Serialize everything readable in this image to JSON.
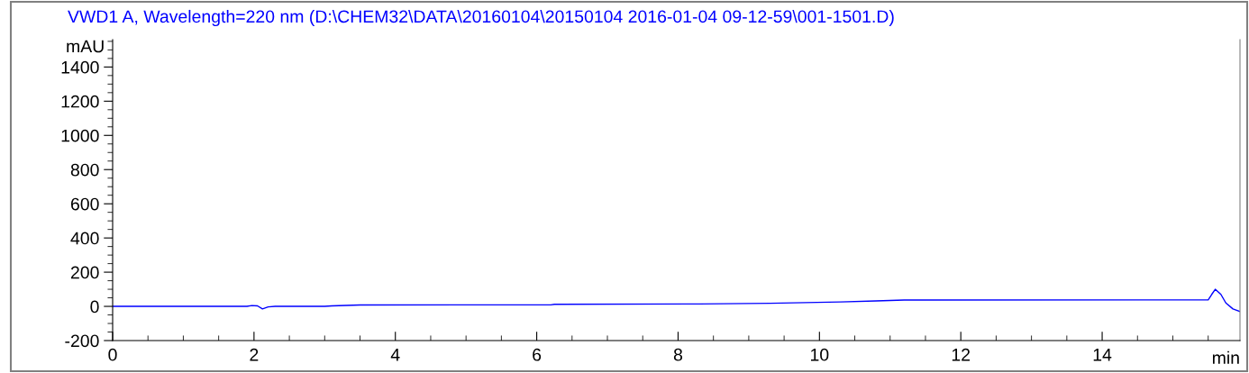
{
  "chart_data": {
    "type": "line",
    "title": "VWD1 A, Wavelength=220 nm (D:\\CHEM32\\DATA\\20160104\\20150104 2016-01-04 09-12-59\\001-1501.D)",
    "xlabel": "min",
    "ylabel": "mAU",
    "x": [
      0,
      1.9,
      1.97,
      2.05,
      2.12,
      2.2,
      2.3,
      3.0,
      3.1,
      3.5,
      6.2,
      6.25,
      8.3,
      9.3,
      9.8,
      10.3,
      10.8,
      11.2,
      15.5,
      15.55,
      15.6,
      15.68,
      15.75,
      15.85,
      15.95
    ],
    "series": [
      {
        "color": "#0000ff",
        "values": [
          0,
          0,
          5,
          3,
          -15,
          -3,
          0,
          0,
          3,
          8,
          9,
          12,
          14,
          18,
          22,
          26,
          32,
          37,
          38,
          70,
          100,
          70,
          20,
          -15,
          -30
        ]
      }
    ],
    "xlim": [
      0,
      15.95
    ],
    "ylim": [
      -200,
      1560
    ],
    "xticks": [
      0,
      {
        "value": 0.5,
        "label": null
      },
      {
        "value": 1,
        "label": null
      },
      {
        "value": 1.5,
        "label": null
      },
      2,
      {
        "value": 2.5,
        "label": null
      },
      {
        "value": 3,
        "label": null
      },
      {
        "value": 3.5,
        "label": null
      },
      4,
      {
        "value": 4.5,
        "label": null
      },
      {
        "value": 5,
        "label": null
      },
      {
        "value": 5.5,
        "label": null
      },
      6,
      {
        "value": 6.5,
        "label": null
      },
      {
        "value": 7,
        "label": null
      },
      {
        "value": 7.5,
        "label": null
      },
      8,
      {
        "value": 8.5,
        "label": null
      },
      {
        "value": 9,
        "label": null
      },
      {
        "value": 9.5,
        "label": null
      },
      10,
      {
        "value": 10.5,
        "label": null
      },
      {
        "value": 11,
        "label": null
      },
      {
        "value": 11.5,
        "label": null
      },
      12,
      {
        "value": 12.5,
        "label": null
      },
      {
        "value": 13,
        "label": null
      },
      {
        "value": 13.5,
        "label": null
      },
      14,
      {
        "value": 14.5,
        "label": null
      },
      {
        "value": 15,
        "label": null
      },
      {
        "value": 15.5,
        "label": null
      }
    ],
    "yticks": [
      -200,
      {
        "value": -150,
        "label": null
      },
      {
        "value": -100,
        "label": null
      },
      {
        "value": -50,
        "label": null
      },
      0,
      {
        "value": 50,
        "label": null
      },
      {
        "value": 100,
        "label": null
      },
      {
        "value": 150,
        "label": null
      },
      200,
      {
        "value": 250,
        "label": null
      },
      {
        "value": 300,
        "label": null
      },
      {
        "value": 350,
        "label": null
      },
      400,
      {
        "value": 450,
        "label": null
      },
      {
        "value": 500,
        "label": null
      },
      {
        "value": 550,
        "label": null
      },
      600,
      {
        "value": 650,
        "label": null
      },
      {
        "value": 700,
        "label": null
      },
      {
        "value": 750,
        "label": null
      },
      800,
      {
        "value": 850,
        "label": null
      },
      {
        "value": 900,
        "label": null
      },
      {
        "value": 950,
        "label": null
      },
      1000,
      {
        "value": 1050,
        "label": null
      },
      {
        "value": 1100,
        "label": null
      },
      {
        "value": 1150,
        "label": null
      },
      1200,
      {
        "value": 1250,
        "label": null
      },
      {
        "value": 1300,
        "label": null
      },
      {
        "value": 1350,
        "label": null
      },
      1400,
      {
        "value": 1450,
        "label": null
      },
      {
        "value": 1500,
        "label": null
      },
      {
        "value": 1550,
        "label": null
      }
    ],
    "grid": false,
    "legend": false
  }
}
